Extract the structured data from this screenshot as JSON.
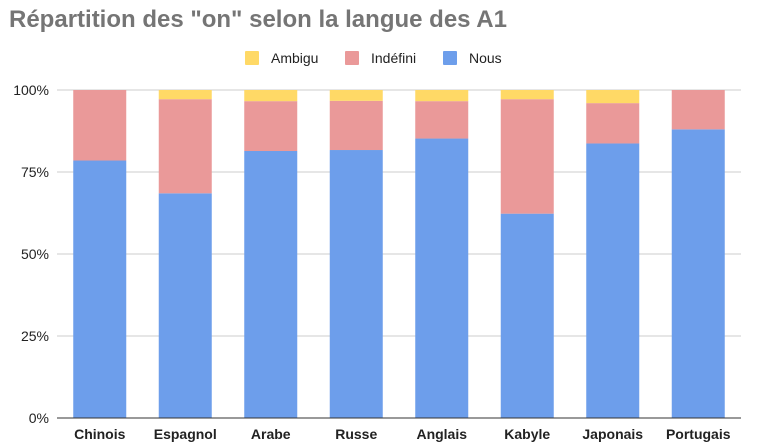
{
  "chart_data": {
    "type": "bar",
    "stacked": true,
    "title": "Répartition des \"on\" selon la langue des A1",
    "xlabel": "",
    "ylabel": "",
    "ylim": [
      0,
      100
    ],
    "y_ticks": [
      "0%",
      "25%",
      "50%",
      "75%",
      "100%"
    ],
    "grid": true,
    "legend_position": "top-center",
    "categories": [
      "Chinois",
      "Espagnol",
      "Arabe",
      "Russe",
      "Anglais",
      "Kabyle",
      "Japonais",
      "Portugais"
    ],
    "series": [
      {
        "name": "Nous",
        "color": "#6d9eeb",
        "values": [
          78.5,
          68.5,
          81.4,
          81.7,
          85.2,
          62.3,
          83.7,
          88.0
        ]
      },
      {
        "name": "Indéfini",
        "color": "#ea9999",
        "values": [
          21.5,
          28.7,
          15.2,
          15.0,
          11.4,
          34.9,
          12.3,
          12.0
        ]
      },
      {
        "name": "Ambigu",
        "color": "#ffd966",
        "values": [
          0.0,
          2.8,
          3.4,
          3.3,
          3.4,
          2.8,
          4.0,
          0.0
        ]
      }
    ]
  }
}
